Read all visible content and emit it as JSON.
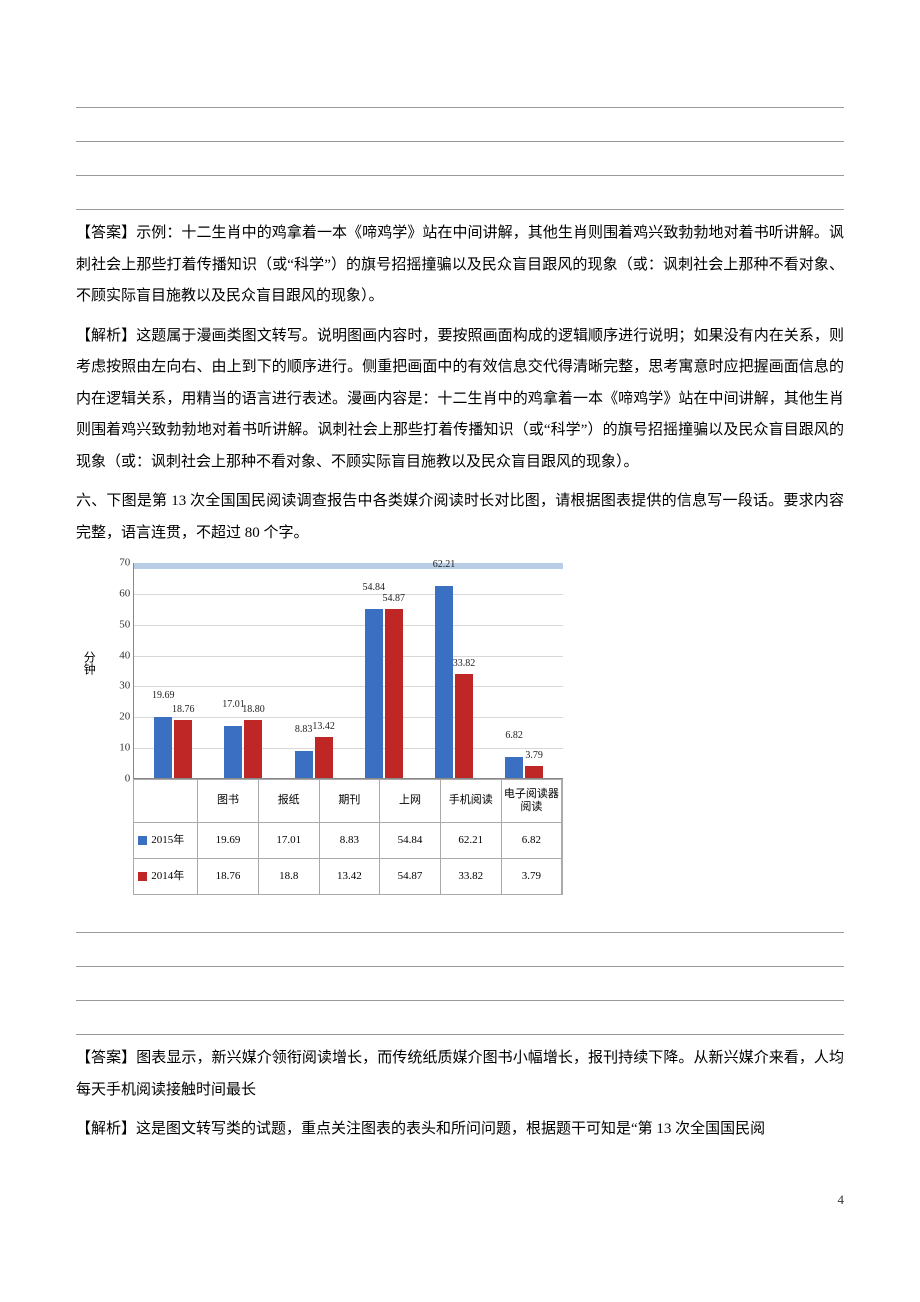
{
  "blanks_top_count": 4,
  "answer1_label": "【答案】",
  "answer1_text": "示例：十二生肖中的鸡拿着一本《啼鸡学》站在中间讲解，其他生肖则围着鸡兴致勃勃地对着书听讲解。讽刺社会上那些打着传播知识（或“科学”）的旗号招摇撞骗以及民众盲目跟风的现象（或：讽刺社会上那种不看对象、不顾实际盲目施教以及民众盲目跟风的现象）。",
  "analysis1_label": "【解析】",
  "analysis1_text": "这题属于漫画类图文转写。说明图画内容时，要按照画面构成的逻辑顺序进行说明；如果没有内在关系，则考虑按照由左向右、由上到下的顺序进行。侧重把画面中的有效信息交代得清晰完整，思考寓意时应把握画面信息的内在逻辑关系，用精当的语言进行表述。漫画内容是：十二生肖中的鸡拿着一本《啼鸡学》站在中间讲解，其他生肖则围着鸡兴致勃勃地对着书听讲解。讽刺社会上那些打着传播知识（或“科学”）的旗号招摇撞骗以及民众盲目跟风的现象（或：讽刺社会上那种不看对象、不顾实际盲目施教以及民众盲目跟风的现象）。",
  "q6_text": "六、下图是第 13 次全国国民阅读调查报告中各类媒介阅读时长对比图，请根据图表提供的信息写一段话。要求内容完整，语言连贯，不超过 80 个字。",
  "chart": {
    "type": "bar",
    "ylabel": "分钟",
    "ymax": 70,
    "yticks": [
      0,
      10,
      20,
      30,
      40,
      50,
      60,
      70
    ],
    "grid_color": "#d8d8d8",
    "banners": [
      {
        "top_pct": 0,
        "color": "#b8cde6"
      },
      {
        "top_pct": 100,
        "color": "#b8cde6"
      }
    ],
    "categories": [
      "图书",
      "报纸",
      "期刊",
      "上网",
      "手机阅读",
      "电子阅读器阅读"
    ],
    "series": [
      {
        "name": "2015年",
        "color_class": "blue",
        "color": "#3b6fc1",
        "values": [
          19.69,
          17.01,
          8.83,
          54.84,
          62.21,
          6.82
        ]
      },
      {
        "name": "2014年",
        "color_class": "red",
        "color": "#bf2626",
        "values": [
          18.76,
          18.8,
          13.42,
          54.87,
          33.82,
          3.79
        ]
      }
    ],
    "value_labels": [
      {
        "blue": "19.69",
        "red": "18.76"
      },
      {
        "blue": "17.01",
        "red": "18.80"
      },
      {
        "blue": "8.83",
        "red": "13.42"
      },
      {
        "blue": "54.84",
        "red": "54.87"
      },
      {
        "blue": "62.21",
        "red": "33.82"
      },
      {
        "blue": "6.82",
        "red": "3.79"
      }
    ]
  },
  "blanks_mid_count": 4,
  "answer2_label": "【答案】",
  "answer2_text": "图表显示，新兴媒介领衔阅读增长，而传统纸质媒介图书小幅增长，报刊持续下降。从新兴媒介来看，人均每天手机阅读接触时间最长",
  "analysis2_label": "【解析】",
  "analysis2_text": "这是图文转写类的试题，重点关注图表的表头和所问问题，根据题干可知是“第 13 次全国国民阅",
  "page_number": "4"
}
